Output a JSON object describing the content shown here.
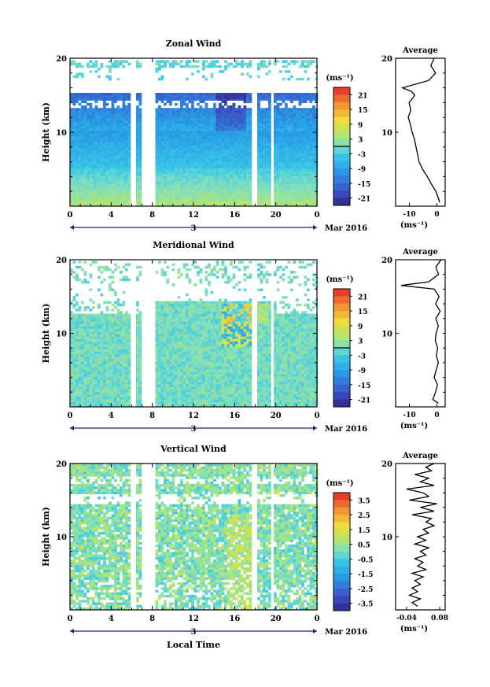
{
  "figure": {
    "date_label": "Mar 2016",
    "day_label": "3",
    "xlabel": "Local Time"
  },
  "chart_data": [
    {
      "type": "heatmap",
      "title": "Zonal Wind",
      "ylabel": "Height (km)",
      "x_ticks": [
        "0",
        "4",
        "8",
        "12",
        "16",
        "20",
        "0"
      ],
      "x_range_hours": [
        0,
        24
      ],
      "y_ticks": [
        "20",
        "10"
      ],
      "y_range_km": [
        0,
        20
      ],
      "colorbar": {
        "unit": "(ms⁻¹)",
        "ticks": [
          "21",
          "15",
          "9",
          "3",
          "-3",
          "-9",
          "-15",
          "-21"
        ],
        "range": [
          -24,
          24
        ],
        "zero_line": 0
      },
      "data_gaps_hours": [
        [
          5.8,
          6.2
        ],
        [
          6.8,
          8.1
        ],
        [
          17.6,
          18.0
        ],
        [
          19.3,
          19.6
        ]
      ],
      "profile": {
        "title": "Average",
        "xlabel": "(ms⁻¹)",
        "x_ticks": [
          "-10",
          "0"
        ],
        "x_range": [
          -15,
          3
        ],
        "y_ticks": [
          "20",
          "10"
        ],
        "height_km": [
          0.5,
          1,
          2,
          3,
          4,
          5,
          6,
          7,
          8,
          9,
          10,
          11,
          12,
          13,
          14,
          15,
          15.5,
          16,
          17,
          18,
          19,
          20
        ],
        "values": [
          1.0,
          0.6,
          -0.4,
          -2.0,
          -3.5,
          -5.2,
          -6.5,
          -7.0,
          -7.6,
          -8.1,
          -9.0,
          -9.6,
          -10.4,
          -9.5,
          -10.1,
          -8.0,
          -9.2,
          -12.5,
          -3.0,
          -0.5,
          -2.2,
          -1.0
        ]
      }
    },
    {
      "type": "heatmap",
      "title": "Meridional Wind",
      "ylabel": "Height (km)",
      "x_ticks": [
        "0",
        "4",
        "8",
        "12",
        "16",
        "20",
        "0"
      ],
      "x_range_hours": [
        0,
        24
      ],
      "y_ticks": [
        "20",
        "10"
      ],
      "y_range_km": [
        0,
        20
      ],
      "colorbar": {
        "unit": "(ms⁻¹)",
        "ticks": [
          "21",
          "15",
          "9",
          "3",
          "-3",
          "-9",
          "-15",
          "-21"
        ],
        "range": [
          -24,
          24
        ],
        "zero_line": 0
      },
      "data_gaps_hours": [
        [
          5.8,
          6.2
        ],
        [
          6.8,
          8.1
        ],
        [
          17.6,
          18.0
        ],
        [
          19.3,
          19.6
        ]
      ],
      "profile": {
        "title": "Average",
        "xlabel": "(ms⁻¹)",
        "x_ticks": [
          "-10",
          "0"
        ],
        "x_range": [
          -15,
          3
        ],
        "y_ticks": [
          "20",
          "10"
        ],
        "height_km": [
          0.5,
          1,
          2,
          3,
          4,
          5,
          6,
          7,
          8,
          9,
          10,
          11,
          12,
          13,
          14,
          15,
          16,
          16.5,
          17,
          18,
          19,
          20
        ],
        "values": [
          0.5,
          -1.5,
          -0.5,
          0.2,
          -1.0,
          -0.3,
          0.5,
          -0.2,
          0.3,
          -0.6,
          -0.3,
          0.5,
          -0.4,
          1.2,
          -0.5,
          0.8,
          -1.0,
          -13.0,
          -3.0,
          0.6,
          -0.4,
          1.5
        ]
      }
    },
    {
      "type": "heatmap",
      "title": "Vertical Wind",
      "ylabel": "Height (km)",
      "x_ticks": [
        "0",
        "4",
        "8",
        "12",
        "16",
        "20",
        "0"
      ],
      "x_range_hours": [
        0,
        24
      ],
      "y_ticks": [
        "20",
        "10"
      ],
      "y_range_km": [
        0,
        20
      ],
      "colorbar": {
        "unit": "(ms⁻¹)",
        "ticks": [
          "3.5",
          "2.5",
          "1.5",
          "0.5",
          "-0.5",
          "-1.5",
          "-2.5",
          "-3.5"
        ],
        "range": [
          -4,
          4
        ]
      },
      "data_gaps_hours": [
        [
          5.8,
          6.2
        ],
        [
          6.8,
          8.1
        ],
        [
          17.6,
          18.0
        ],
        [
          19.3,
          19.6
        ]
      ],
      "profile": {
        "title": "Average",
        "xlabel": "(ms⁻¹)",
        "x_ticks": [
          "-0.04",
          "0.08"
        ],
        "x_range": [
          -0.08,
          0.1
        ],
        "y_ticks": [
          "20",
          "10"
        ],
        "height_km": [
          0.5,
          1,
          1.5,
          2,
          2.5,
          3,
          3.5,
          4,
          4.5,
          5,
          5.5,
          6,
          6.5,
          7,
          7.5,
          8,
          8.5,
          9,
          9.5,
          10,
          10.5,
          11,
          11.5,
          12,
          12.5,
          13,
          13.5,
          14,
          14.5,
          15,
          15.5,
          16,
          16.5,
          17,
          17.5,
          18,
          18.5,
          19,
          19.5,
          20
        ],
        "values": [
          0.0,
          -0.02,
          0.01,
          -0.03,
          0.0,
          -0.02,
          0.01,
          -0.01,
          0.02,
          -0.02,
          0.03,
          0.0,
          0.02,
          -0.01,
          0.03,
          0.01,
          0.04,
          -0.01,
          0.03,
          0.0,
          0.04,
          0.02,
          0.06,
          0.03,
          0.05,
          -0.02,
          0.06,
          0.01,
          0.07,
          -0.03,
          0.04,
          0.02,
          -0.04,
          0.06,
          0.01,
          0.04,
          -0.01,
          0.05,
          0.03,
          0.06
        ]
      }
    }
  ]
}
